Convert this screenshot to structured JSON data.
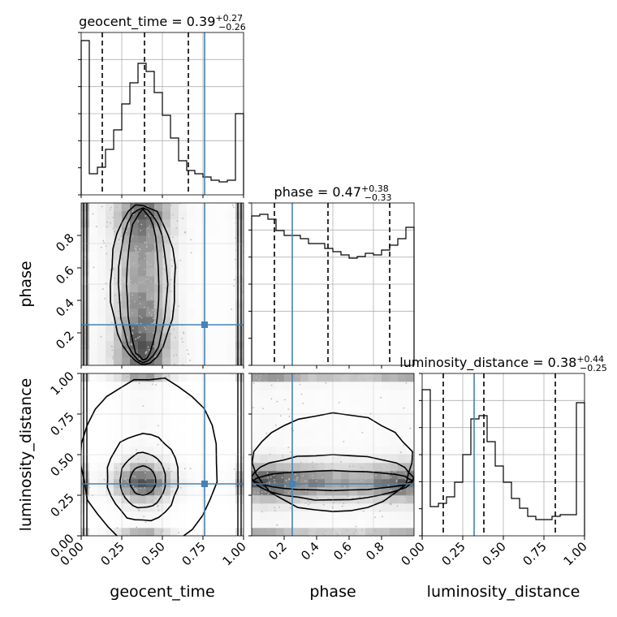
{
  "chart_data": {
    "type": "corner",
    "parameters": [
      "geocent_time",
      "phase",
      "luminosity_distance"
    ],
    "injection": {
      "geocent_time": 0.76,
      "phase": 0.25,
      "luminosity_distance": 0.32
    },
    "colors": {
      "injection": "#4682b4",
      "hist": "#000000",
      "density_dark": "#404040",
      "scatter": "#bbbbbb"
    },
    "titles": [
      {
        "param": "geocent_time",
        "text": "geocent_time = 0.39",
        "plus": "+0.27",
        "minus": "−0.26"
      },
      {
        "param": "phase",
        "text": "phase = 0.47",
        "plus": "+0.38",
        "minus": "−0.33"
      },
      {
        "param": "luminosity_distance",
        "text": "luminosity_distance = 0.38",
        "plus": "+0.44",
        "minus": "−0.25"
      }
    ],
    "axis_labels": {
      "x": [
        "geocent_time",
        "phase",
        "luminosity_distance"
      ],
      "y": [
        "phase",
        "luminosity_distance"
      ]
    },
    "ranges": {
      "geocent_time": [
        0,
        1
      ],
      "phase": [
        0,
        1
      ],
      "luminosity_distance": [
        0,
        1
      ]
    },
    "ticks": {
      "geocent_time": [
        "0.00",
        "0.25",
        "0.50",
        "0.75",
        "1.00"
      ],
      "phase": [
        "0.2",
        "0.4",
        "0.6",
        "0.8"
      ],
      "luminosity_distance": [
        "0.00",
        "0.25",
        "0.50",
        "0.75",
        "1.00"
      ]
    },
    "histograms": {
      "geocent_time": {
        "quantiles": [
          0.13,
          0.39,
          0.66
        ],
        "values": [
          0.95,
          0.13,
          0.17,
          0.28,
          0.4,
          0.56,
          0.69,
          0.81,
          0.76,
          0.63,
          0.49,
          0.35,
          0.21,
          0.15,
          0.13,
          0.11,
          0.09,
          0.08,
          0.09,
          0.5
        ]
      },
      "phase": {
        "quantiles": [
          0.14,
          0.47,
          0.85
        ],
        "values": [
          0.92,
          0.93,
          0.9,
          0.83,
          0.8,
          0.8,
          0.78,
          0.75,
          0.75,
          0.72,
          0.7,
          0.68,
          0.66,
          0.67,
          0.69,
          0.68,
          0.71,
          0.74,
          0.78,
          0.85
        ]
      },
      "luminosity_distance": {
        "quantiles": [
          0.13,
          0.38,
          0.82
        ],
        "values": [
          0.9,
          0.18,
          0.2,
          0.24,
          0.33,
          0.5,
          0.72,
          0.74,
          0.58,
          0.43,
          0.33,
          0.23,
          0.17,
          0.12,
          0.1,
          0.1,
          0.12,
          0.13,
          0.13,
          0.82
        ]
      }
    },
    "grid": true,
    "legend": "none"
  }
}
